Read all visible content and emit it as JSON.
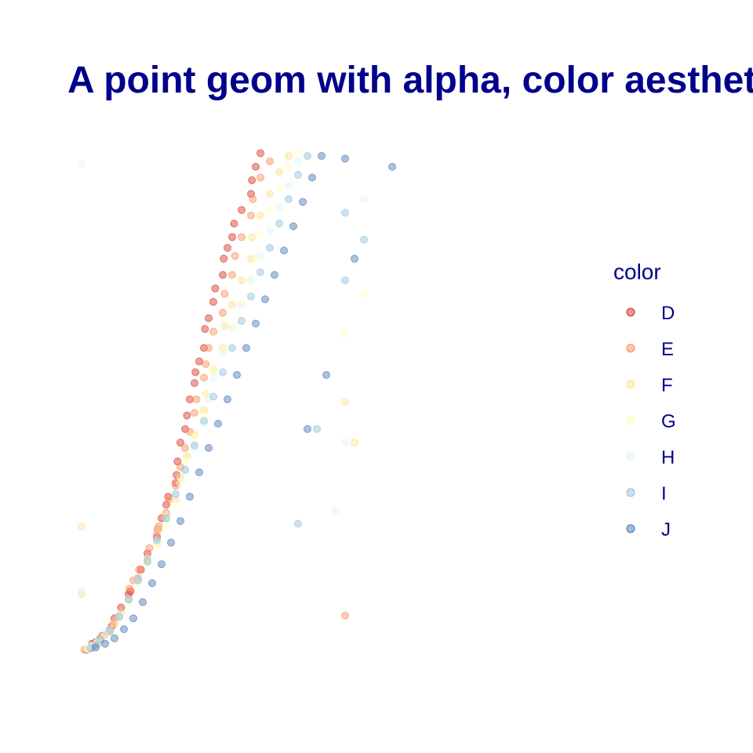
{
  "chart_data": {
    "type": "scatter",
    "title": "A point geom with alpha, color aesthetic",
    "xlabel": "",
    "ylabel": "",
    "axes_shown": false,
    "grid": false,
    "xlim": [
      0,
      5.5
    ],
    "ylim": [
      0,
      19000
    ],
    "point_alpha": 0.45,
    "legend": {
      "title": "color",
      "position": "right",
      "entries": [
        {
          "name": "D",
          "color": "#D73027"
        },
        {
          "name": "E",
          "color": "#FC8D59"
        },
        {
          "name": "F",
          "color": "#FEE090"
        },
        {
          "name": "G",
          "color": "#FFFFBF"
        },
        {
          "name": "H",
          "color": "#E0F3F8"
        },
        {
          "name": "I",
          "color": "#91BFDB"
        },
        {
          "name": "J",
          "color": "#4575B4"
        }
      ]
    },
    "series": [
      {
        "name": "D",
        "color": "#D73027",
        "points": [
          [
            0.25,
            330
          ],
          [
            0.3,
            400
          ],
          [
            0.3,
            450
          ],
          [
            0.32,
            480
          ],
          [
            0.31,
            560
          ],
          [
            0.35,
            620
          ],
          [
            0.4,
            750
          ],
          [
            0.42,
            850
          ],
          [
            0.5,
            1100
          ],
          [
            0.52,
            1200
          ],
          [
            0.55,
            1500
          ],
          [
            0.62,
            1900
          ],
          [
            0.7,
            2400
          ],
          [
            0.72,
            2500
          ],
          [
            0.8,
            3000
          ],
          [
            0.83,
            3300
          ],
          [
            0.9,
            3900
          ],
          [
            1.0,
            4500
          ],
          [
            1.01,
            4800
          ],
          [
            1.05,
            5200
          ],
          [
            1.1,
            5700
          ],
          [
            1.12,
            6000
          ],
          [
            1.2,
            6500
          ],
          [
            1.21,
            6800
          ],
          [
            1.22,
            7300
          ],
          [
            1.25,
            8000
          ],
          [
            1.3,
            8500
          ],
          [
            1.32,
            9000
          ],
          [
            1.35,
            9600
          ],
          [
            1.4,
            10200
          ],
          [
            1.41,
            10600
          ],
          [
            1.45,
            11000
          ],
          [
            1.5,
            11500
          ],
          [
            1.51,
            12200
          ],
          [
            1.55,
            12600
          ],
          [
            1.6,
            13200
          ],
          [
            1.62,
            13700
          ],
          [
            1.7,
            14200
          ],
          [
            1.71,
            14800
          ],
          [
            1.75,
            15200
          ],
          [
            1.8,
            15600
          ],
          [
            1.82,
            16100
          ],
          [
            1.9,
            16600
          ],
          [
            2.0,
            17200
          ],
          [
            2.01,
            17700
          ],
          [
            2.05,
            18200
          ],
          [
            2.1,
            18700
          ]
        ]
      },
      {
        "name": "E",
        "color": "#FC8D59",
        "points": [
          [
            0.23,
            340
          ],
          [
            0.3,
            430
          ],
          [
            0.34,
            520
          ],
          [
            0.38,
            600
          ],
          [
            0.4,
            700
          ],
          [
            0.45,
            900
          ],
          [
            0.5,
            1000
          ],
          [
            0.54,
            1300
          ],
          [
            0.6,
            1600
          ],
          [
            0.7,
            2200
          ],
          [
            0.71,
            2600
          ],
          [
            0.75,
            2900
          ],
          [
            0.81,
            3300
          ],
          [
            0.9,
            3700
          ],
          [
            0.92,
            4100
          ],
          [
            1.0,
            4600
          ],
          [
            1.02,
            4900
          ],
          [
            1.1,
            5400
          ],
          [
            1.13,
            5900
          ],
          [
            1.2,
            6400
          ],
          [
            1.25,
            7100
          ],
          [
            1.3,
            7800
          ],
          [
            1.35,
            8400
          ],
          [
            1.4,
            9100
          ],
          [
            1.42,
            9600
          ],
          [
            1.5,
            10400
          ],
          [
            1.52,
            10900
          ],
          [
            1.55,
            11500
          ],
          [
            1.6,
            12100
          ],
          [
            1.7,
            12800
          ],
          [
            1.72,
            13500
          ],
          [
            1.8,
            14200
          ],
          [
            1.83,
            14900
          ],
          [
            1.9,
            15600
          ],
          [
            2.0,
            16400
          ],
          [
            2.02,
            17000
          ],
          [
            2.1,
            17800
          ],
          [
            2.2,
            18400
          ],
          [
            3.0,
            1600
          ]
        ]
      },
      {
        "name": "F",
        "color": "#FEE090",
        "points": [
          [
            0.25,
            360
          ],
          [
            0.31,
            460
          ],
          [
            0.35,
            550
          ],
          [
            0.4,
            680
          ],
          [
            0.5,
            1000
          ],
          [
            0.55,
            1300
          ],
          [
            0.62,
            1700
          ],
          [
            0.7,
            2200
          ],
          [
            0.8,
            2900
          ],
          [
            0.9,
            3600
          ],
          [
            1.0,
            4300
          ],
          [
            1.02,
            4800
          ],
          [
            1.1,
            5300
          ],
          [
            1.2,
            5900
          ],
          [
            1.25,
            6700
          ],
          [
            1.32,
            7500
          ],
          [
            1.4,
            8300
          ],
          [
            1.5,
            9200
          ],
          [
            1.52,
            9800
          ],
          [
            1.6,
            10700
          ],
          [
            1.7,
            11500
          ],
          [
            1.72,
            12300
          ],
          [
            1.8,
            13100
          ],
          [
            1.9,
            14000
          ],
          [
            2.0,
            14800
          ],
          [
            2.01,
            15600
          ],
          [
            2.1,
            16400
          ],
          [
            2.2,
            17200
          ],
          [
            2.3,
            18000
          ],
          [
            2.4,
            18600
          ],
          [
            0.2,
            2400
          ],
          [
            0.2,
            4900
          ],
          [
            3.0,
            9500
          ],
          [
            3.1,
            8000
          ]
        ]
      },
      {
        "name": "G",
        "color": "#FFFFBF",
        "points": [
          [
            0.26,
            380
          ],
          [
            0.3,
            470
          ],
          [
            0.36,
            600
          ],
          [
            0.42,
            800
          ],
          [
            0.5,
            1050
          ],
          [
            0.6,
            1500
          ],
          [
            0.7,
            2100
          ],
          [
            0.8,
            2800
          ],
          [
            0.9,
            3500
          ],
          [
            1.0,
            4200
          ],
          [
            1.1,
            5000
          ],
          [
            1.2,
            5700
          ],
          [
            1.25,
            6500
          ],
          [
            1.3,
            7300
          ],
          [
            1.4,
            8200
          ],
          [
            1.5,
            9000
          ],
          [
            1.52,
            9800
          ],
          [
            1.6,
            10600
          ],
          [
            1.7,
            11400
          ],
          [
            1.8,
            12300
          ],
          [
            1.9,
            13200
          ],
          [
            2.0,
            14000
          ],
          [
            2.05,
            14800
          ],
          [
            2.1,
            15700
          ],
          [
            2.2,
            16600
          ],
          [
            2.3,
            17400
          ],
          [
            2.4,
            18200
          ],
          [
            2.5,
            18700
          ],
          [
            3.0,
            12000
          ],
          [
            3.2,
            13500
          ]
        ]
      },
      {
        "name": "H",
        "color": "#E0F3F8",
        "points": [
          [
            0.27,
            390
          ],
          [
            0.32,
            490
          ],
          [
            0.38,
            640
          ],
          [
            0.45,
            900
          ],
          [
            0.5,
            1100
          ],
          [
            0.6,
            1600
          ],
          [
            0.7,
            2200
          ],
          [
            0.8,
            3000
          ],
          [
            0.9,
            3700
          ],
          [
            1.0,
            4400
          ],
          [
            1.1,
            5200
          ],
          [
            1.2,
            6000
          ],
          [
            1.3,
            6900
          ],
          [
            1.4,
            7800
          ],
          [
            1.5,
            8700
          ],
          [
            1.55,
            9600
          ],
          [
            1.6,
            10400
          ],
          [
            1.7,
            11300
          ],
          [
            1.8,
            12200
          ],
          [
            1.9,
            13100
          ],
          [
            2.0,
            14000
          ],
          [
            2.1,
            14900
          ],
          [
            2.2,
            15800
          ],
          [
            2.3,
            16700
          ],
          [
            2.4,
            17500
          ],
          [
            2.5,
            18400
          ],
          [
            0.2,
            2550
          ],
          [
            0.2,
            18300
          ],
          [
            2.9,
            5500
          ],
          [
            3.2,
            17000
          ],
          [
            3.0,
            8000
          ]
        ]
      },
      {
        "name": "I",
        "color": "#91BFDB",
        "points": [
          [
            0.3,
            400
          ],
          [
            0.35,
            520
          ],
          [
            0.4,
            700
          ],
          [
            0.5,
            1050
          ],
          [
            0.6,
            1550
          ],
          [
            0.7,
            2200
          ],
          [
            0.8,
            2900
          ],
          [
            0.9,
            3600
          ],
          [
            1.0,
            4400
          ],
          [
            1.1,
            5200
          ],
          [
            1.2,
            6100
          ],
          [
            1.3,
            7000
          ],
          [
            1.4,
            7900
          ],
          [
            1.5,
            8800
          ],
          [
            1.6,
            9700
          ],
          [
            1.7,
            10600
          ],
          [
            1.8,
            11500
          ],
          [
            1.9,
            12500
          ],
          [
            2.0,
            13400
          ],
          [
            2.1,
            14300
          ],
          [
            2.2,
            15200
          ],
          [
            2.3,
            16100
          ],
          [
            2.4,
            17000
          ],
          [
            2.5,
            17900
          ],
          [
            2.6,
            18600
          ],
          [
            2.5,
            5000
          ],
          [
            2.7,
            8500
          ],
          [
            3.0,
            14000
          ],
          [
            3.2,
            15500
          ],
          [
            3.0,
            16500
          ]
        ]
      },
      {
        "name": "J",
        "color": "#4575B4",
        "points": [
          [
            0.35,
            420
          ],
          [
            0.45,
            560
          ],
          [
            0.55,
            760
          ],
          [
            0.65,
            1100
          ],
          [
            0.75,
            1500
          ],
          [
            0.85,
            2100
          ],
          [
            0.95,
            2800
          ],
          [
            1.05,
            3500
          ],
          [
            1.15,
            4300
          ],
          [
            1.25,
            5100
          ],
          [
            1.35,
            6000
          ],
          [
            1.45,
            6900
          ],
          [
            1.55,
            7800
          ],
          [
            1.65,
            8700
          ],
          [
            1.75,
            9600
          ],
          [
            1.85,
            10500
          ],
          [
            1.95,
            11500
          ],
          [
            2.05,
            12400
          ],
          [
            2.15,
            13300
          ],
          [
            2.25,
            14200
          ],
          [
            2.35,
            15100
          ],
          [
            2.45,
            16000
          ],
          [
            2.55,
            16900
          ],
          [
            2.65,
            17800
          ],
          [
            2.75,
            18600
          ],
          [
            3.0,
            18500
          ],
          [
            3.5,
            18200
          ],
          [
            3.1,
            14800
          ],
          [
            2.8,
            10500
          ],
          [
            2.6,
            8500
          ]
        ]
      }
    ]
  }
}
